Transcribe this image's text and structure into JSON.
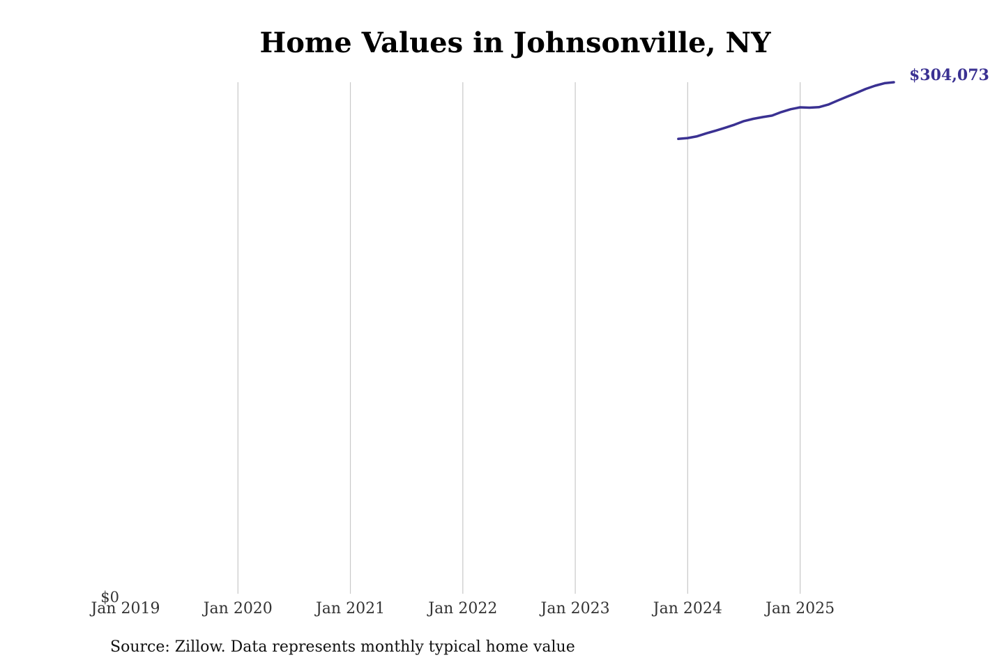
{
  "chart_data": {
    "type": "line",
    "title": "Home Values in Johnsonville, NY",
    "xlabel": "",
    "ylabel": "",
    "x_ticks": [
      "Jan 2019",
      "Jan 2020",
      "Jan 2021",
      "Jan 2022",
      "Jan 2023",
      "Jan 2024",
      "Jan 2025"
    ],
    "y_ticks": [
      "$0"
    ],
    "xlim": [
      "2019-01",
      "2025-12"
    ],
    "ylim": [
      0,
      304073
    ],
    "grid": "vertical",
    "legend": "none",
    "series": [
      {
        "color": "#3a3192",
        "x": [
          "2023-12",
          "2024-01",
          "2024-02",
          "2024-03",
          "2024-04",
          "2024-05",
          "2024-06",
          "2024-07",
          "2024-08",
          "2024-09",
          "2024-10",
          "2024-11",
          "2024-12",
          "2025-01",
          "2025-02",
          "2025-03",
          "2025-04",
          "2025-05",
          "2025-06",
          "2025-07",
          "2025-08",
          "2025-09",
          "2025-10",
          "2025-11"
        ],
        "values": [
          270500,
          271000,
          272000,
          273800,
          275400,
          277100,
          278900,
          281000,
          282400,
          283400,
          284300,
          286400,
          288100,
          289200,
          289000,
          289300,
          290800,
          293200,
          295500,
          297700,
          300100,
          302000,
          303500,
          304073
        ]
      }
    ],
    "end_label": "$304,073"
  },
  "source": "Source: Zillow. Data represents monthly typical home value",
  "colors": {
    "line": "#3a3192",
    "grid": "#c8c8c8",
    "tick_text": "#333333"
  }
}
